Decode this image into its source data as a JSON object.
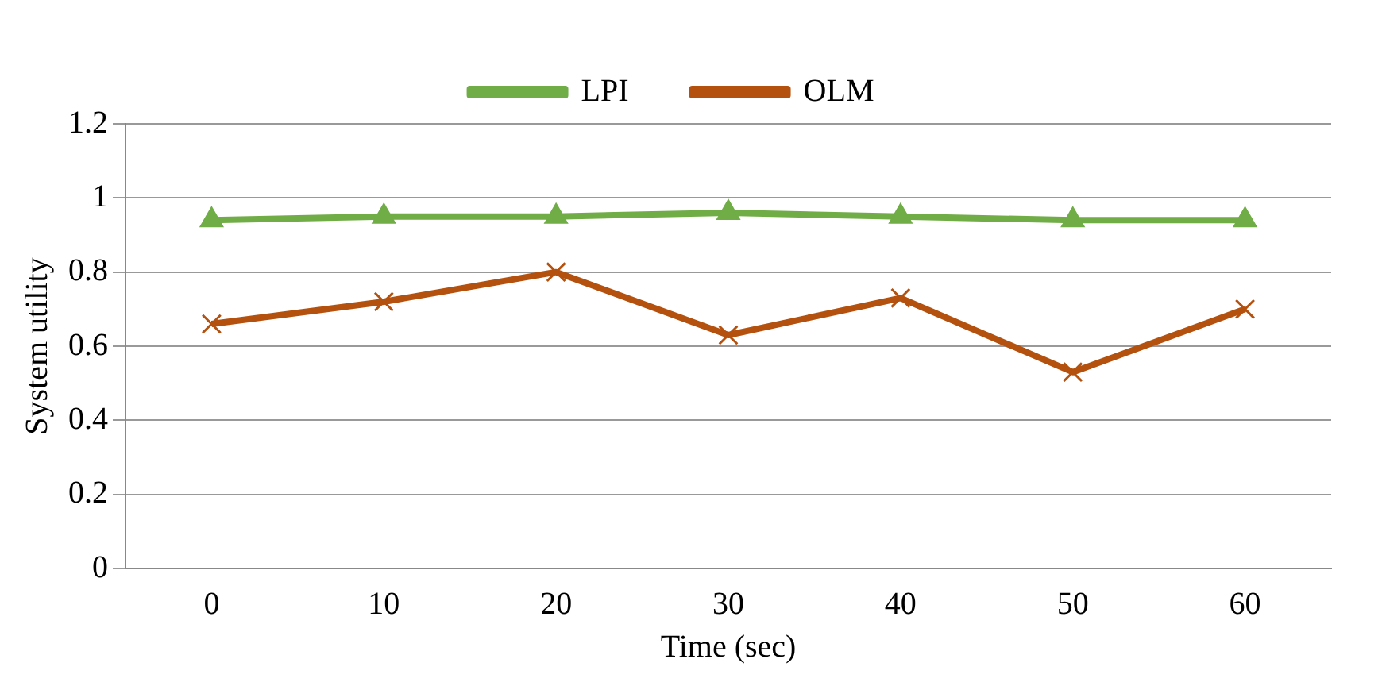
{
  "chart_data": {
    "type": "line",
    "xlabel": "Time (sec)",
    "ylabel": "System utility",
    "categories": [
      "0",
      "10",
      "20",
      "30",
      "40",
      "50",
      "60"
    ],
    "series": [
      {
        "name": "LPI",
        "color": "#70ad47",
        "marker": "triangle",
        "values": [
          0.94,
          0.95,
          0.95,
          0.96,
          0.95,
          0.94,
          0.94
        ]
      },
      {
        "name": "OLM",
        "color": "#b4510e",
        "marker": "cross",
        "values": [
          0.66,
          0.72,
          0.8,
          0.63,
          0.73,
          0.53,
          0.7
        ]
      }
    ],
    "ylim": [
      0,
      1.2
    ],
    "yticks": [
      0,
      0.2,
      0.4,
      0.6,
      0.8,
      1,
      1.2
    ],
    "grid": "y",
    "legend": "top"
  }
}
